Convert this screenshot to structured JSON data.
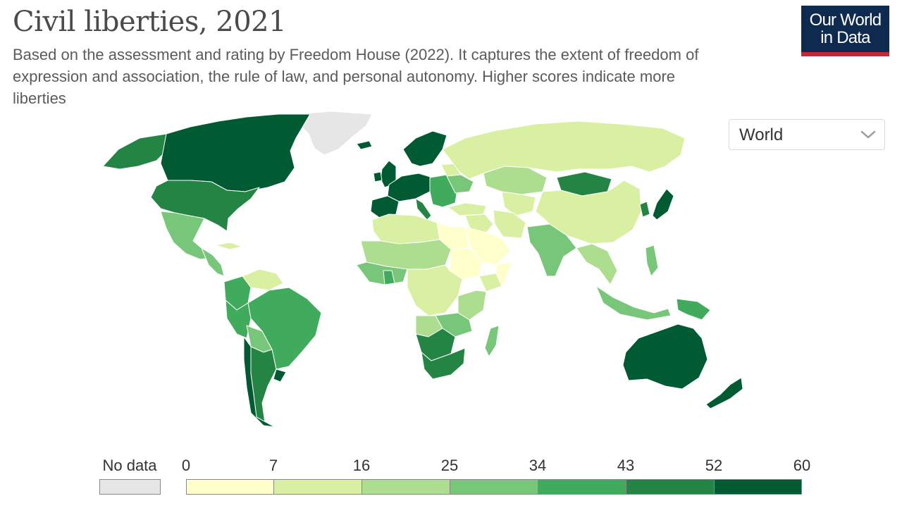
{
  "header": {
    "title": "Civil liberties, 2021",
    "subtitle": "Based on the assessment and rating by Freedom House (2022). It captures the extent of freedom of expression and association, the rule of law, and personal autonomy. Higher scores indicate more liberties",
    "logo_line1": "Our World",
    "logo_line2": "in Data"
  },
  "controls": {
    "region": "World"
  },
  "legend": {
    "no_data_label": "No data",
    "no_data_color": "#e6e6e6",
    "bins": [
      {
        "from": "0",
        "to": "7",
        "color": "#ffffcc"
      },
      {
        "from": "7",
        "to": "16",
        "color": "#d9f0a3"
      },
      {
        "from": "16",
        "to": "25",
        "color": "#addd8e"
      },
      {
        "from": "25",
        "to": "34",
        "color": "#78c679"
      },
      {
        "from": "34",
        "to": "43",
        "color": "#41ab5d"
      },
      {
        "from": "43",
        "to": "52",
        "color": "#238443"
      },
      {
        "from": "52",
        "to": "60",
        "color": "#005a32"
      }
    ],
    "tick_labels": [
      "0",
      "7",
      "16",
      "25",
      "34",
      "43",
      "52",
      "60"
    ]
  },
  "colors": {
    "no_data": "#e6e6e6",
    "c0": "#ffffcc",
    "c1": "#d9f0a3",
    "c2": "#addd8e",
    "c3": "#78c679",
    "c4": "#41ab5d",
    "c5": "#238443",
    "c6": "#005a32"
  },
  "map": {
    "regions": [
      {
        "name": "Canada",
        "color": "c6"
      },
      {
        "name": "United States",
        "color": "c5"
      },
      {
        "name": "Alaska",
        "color": "c5"
      },
      {
        "name": "Greenland",
        "color": "no_data"
      },
      {
        "name": "Mexico",
        "color": "c3"
      },
      {
        "name": "Central America",
        "color": "c3"
      },
      {
        "name": "Cuba",
        "color": "c1"
      },
      {
        "name": "Venezuela",
        "color": "c1"
      },
      {
        "name": "Colombia",
        "color": "c4"
      },
      {
        "name": "Brazil",
        "color": "c4"
      },
      {
        "name": "Peru",
        "color": "c4"
      },
      {
        "name": "Bolivia",
        "color": "c3"
      },
      {
        "name": "Argentina",
        "color": "c5"
      },
      {
        "name": "Chile",
        "color": "c6"
      },
      {
        "name": "Uruguay",
        "color": "c6"
      },
      {
        "name": "Iceland",
        "color": "c6"
      },
      {
        "name": "United Kingdom",
        "color": "c6"
      },
      {
        "name": "Ireland",
        "color": "c6"
      },
      {
        "name": "Scandinavia",
        "color": "c6"
      },
      {
        "name": "Western Europe",
        "color": "c6"
      },
      {
        "name": "Iberia",
        "color": "c6"
      },
      {
        "name": "Italy",
        "color": "c5"
      },
      {
        "name": "Eastern Europe",
        "color": "c4"
      },
      {
        "name": "Belarus",
        "color": "c1"
      },
      {
        "name": "Ukraine",
        "color": "c3"
      },
      {
        "name": "Turkey",
        "color": "c1"
      },
      {
        "name": "Russia",
        "color": "c1"
      },
      {
        "name": "Kazakhstan",
        "color": "c2"
      },
      {
        "name": "Central Asia",
        "color": "c1"
      },
      {
        "name": "Mongolia",
        "color": "c5"
      },
      {
        "name": "China",
        "color": "c1"
      },
      {
        "name": "Korea",
        "color": "c5"
      },
      {
        "name": "Japan",
        "color": "c6"
      },
      {
        "name": "Iran",
        "color": "c1"
      },
      {
        "name": "Saudi Arabia",
        "color": "c0"
      },
      {
        "name": "Middle East",
        "color": "c1"
      },
      {
        "name": "India",
        "color": "c3"
      },
      {
        "name": "Southeast Asia",
        "color": "c2"
      },
      {
        "name": "Indonesia",
        "color": "c3"
      },
      {
        "name": "Philippines",
        "color": "c3"
      },
      {
        "name": "Papua New Guinea",
        "color": "c4"
      },
      {
        "name": "Australia",
        "color": "c6"
      },
      {
        "name": "New Zealand",
        "color": "c6"
      },
      {
        "name": "North Africa",
        "color": "c1"
      },
      {
        "name": "Libya",
        "color": "c0"
      },
      {
        "name": "Sahel",
        "color": "c2"
      },
      {
        "name": "West Africa",
        "color": "c3"
      },
      {
        "name": "Ghana",
        "color": "c4"
      },
      {
        "name": "Central Africa",
        "color": "c1"
      },
      {
        "name": "Sudan",
        "color": "c0"
      },
      {
        "name": "Ethiopia",
        "color": "c1"
      },
      {
        "name": "Somalia",
        "color": "c0"
      },
      {
        "name": "East Africa",
        "color": "c2"
      },
      {
        "name": "Angola",
        "color": "c2"
      },
      {
        "name": "Zambia & Malawi",
        "color": "c3"
      },
      {
        "name": "Namibia & Botswana",
        "color": "c5"
      },
      {
        "name": "South Africa",
        "color": "c5"
      },
      {
        "name": "Madagascar",
        "color": "c3"
      }
    ]
  }
}
